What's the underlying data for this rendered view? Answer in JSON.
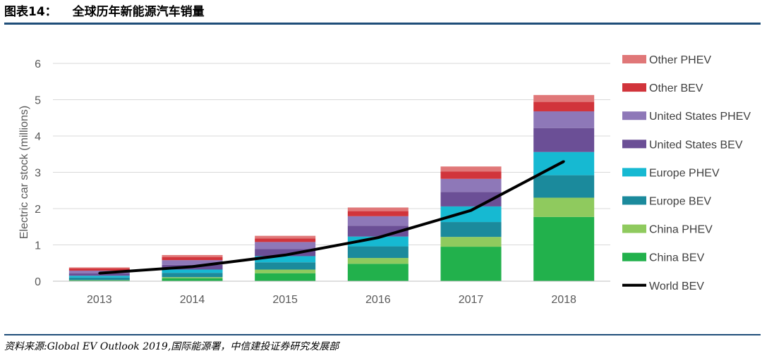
{
  "header": {
    "figure_number": "图表14：",
    "figure_title": "全球历年新能源汽车销量"
  },
  "source_text": "资料来源:Global EV Outlook 2019,国际能源署，中信建投证券研究发展部",
  "chart_data": {
    "type": "bar",
    "stacked": true,
    "categories": [
      "2013",
      "2014",
      "2015",
      "2016",
      "2017",
      "2018"
    ],
    "ylabel": "Electric car stock (millions)",
    "ylim": [
      0,
      6
    ],
    "yticks": [
      "0",
      "1",
      "2",
      "3",
      "4",
      "5",
      "6"
    ],
    "grid": true,
    "legend_position": "right",
    "series": [
      {
        "name": "China BEV",
        "color": "#22b14c",
        "values": [
          0.02,
          0.08,
          0.22,
          0.48,
          0.95,
          1.77
        ]
      },
      {
        "name": "China PHEV",
        "color": "#8fca5e",
        "values": [
          0.01,
          0.03,
          0.1,
          0.16,
          0.27,
          0.53
        ]
      },
      {
        "name": "Europe BEV",
        "color": "#1b8a9c",
        "values": [
          0.07,
          0.12,
          0.2,
          0.32,
          0.41,
          0.62
        ]
      },
      {
        "name": "Europe PHEV",
        "color": "#16b9d2",
        "values": [
          0.05,
          0.09,
          0.17,
          0.27,
          0.43,
          0.64
        ]
      },
      {
        "name": "United States BEV",
        "color": "#6b4f96",
        "values": [
          0.07,
          0.13,
          0.2,
          0.3,
          0.4,
          0.66
        ]
      },
      {
        "name": "United States PHEV",
        "color": "#8e78b8",
        "values": [
          0.07,
          0.13,
          0.19,
          0.26,
          0.36,
          0.46
        ]
      },
      {
        "name": "Other BEV",
        "color": "#d1343b",
        "values": [
          0.06,
          0.08,
          0.1,
          0.14,
          0.2,
          0.26
        ]
      },
      {
        "name": "Other PHEV",
        "color": "#e07778",
        "values": [
          0.03,
          0.06,
          0.07,
          0.1,
          0.14,
          0.19
        ]
      }
    ],
    "line_series": {
      "name": "World BEV",
      "color": "#000000",
      "values": [
        0.22,
        0.4,
        0.72,
        1.2,
        1.95,
        3.3
      ]
    }
  }
}
